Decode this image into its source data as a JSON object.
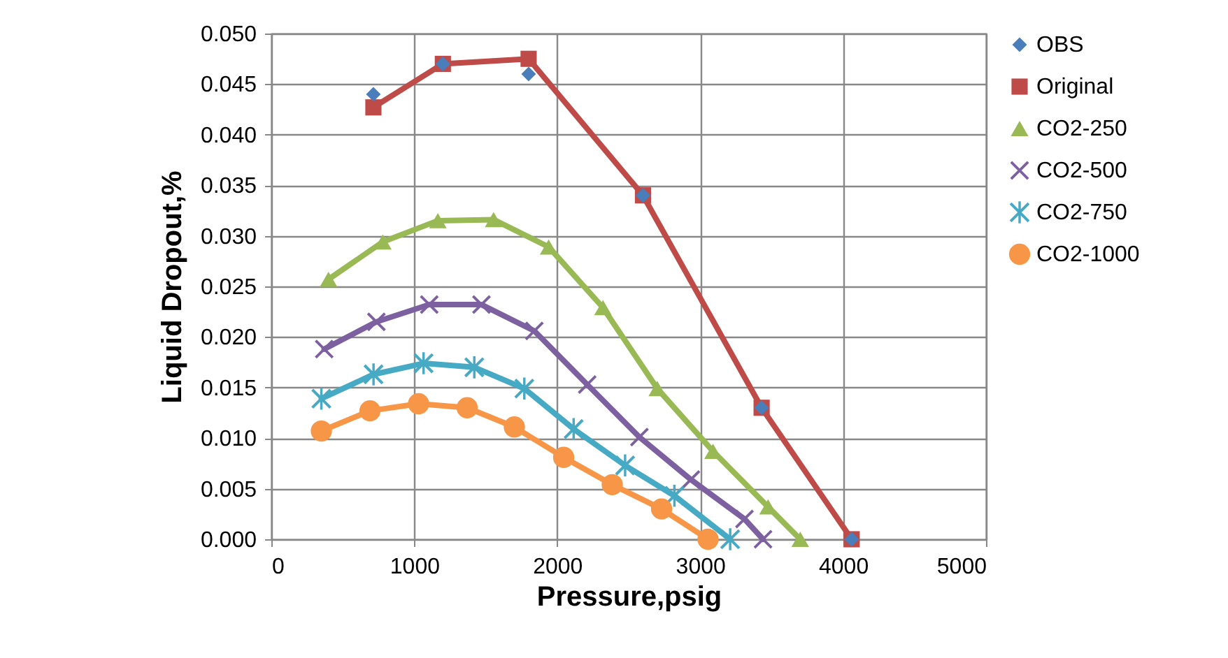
{
  "chart_data": {
    "type": "line",
    "xlabel": "Pressure,psig",
    "ylabel": "Liquid Dropout,%",
    "xlim": [
      0,
      5000
    ],
    "xticks": [
      0,
      1000,
      2000,
      3000,
      4000,
      5000
    ],
    "ylim": [
      0,
      0.05
    ],
    "yticks": [
      {
        "value": 0,
        "label": "0.000"
      },
      {
        "value": 0.005,
        "label": "0.005"
      },
      {
        "value": 0.01,
        "label": "0.010"
      },
      {
        "value": 0.015,
        "label": "0.015"
      },
      {
        "value": 0.02,
        "label": "0.020"
      },
      {
        "value": 0.025,
        "label": "0.025"
      },
      {
        "value": 0.03,
        "label": "0.030"
      },
      {
        "value": 0.035,
        "label": "0.035"
      },
      {
        "value": 0.04,
        "label": "0.040"
      },
      {
        "value": 0.045,
        "label": "0.045"
      },
      {
        "value": 0.05,
        "label": "0.050"
      }
    ],
    "grid": true,
    "legend": "right",
    "series": [
      {
        "name": "OBS",
        "type": "scatter",
        "marker": "diamond",
        "color": "#4a7ebb",
        "x": [
          714,
          1200,
          1800,
          2600,
          3430,
          4060
        ],
        "values": [
          0.044,
          0.047,
          0.046,
          0.034,
          0.013,
          0
        ]
      },
      {
        "name": "Original",
        "type": "line",
        "marker": "square",
        "color": "#be4b48",
        "x": [
          714,
          1200,
          1800,
          2600,
          3430,
          4060
        ],
        "values": [
          0.0427,
          0.047,
          0.0475,
          0.034,
          0.013,
          0
        ]
      },
      {
        "name": "CO2-250",
        "type": "line",
        "marker": "triangle",
        "color": "#98b954",
        "x": [
          400,
          780,
          1165,
          1555,
          1940,
          2320,
          2700,
          3090,
          3475,
          3700
        ],
        "values": [
          0.0257,
          0.0294,
          0.0315,
          0.0316,
          0.0289,
          0.0229,
          0.0149,
          0.0087,
          0.0032,
          0
        ]
      },
      {
        "name": "CO2-500",
        "type": "line",
        "marker": "cross",
        "color": "#7d60a0",
        "x": [
          370,
          735,
          1105,
          1470,
          1840,
          2210,
          2575,
          2935,
          3310,
          3440
        ],
        "values": [
          0.0188,
          0.0215,
          0.0232,
          0.0232,
          0.0206,
          0.0153,
          0.0101,
          0.0059,
          0.002,
          0
        ]
      },
      {
        "name": "CO2-750",
        "type": "line",
        "marker": "star",
        "color": "#46aac5",
        "x": [
          350,
          715,
          1065,
          1420,
          1770,
          2115,
          2475,
          2820,
          3210
        ],
        "values": [
          0.0139,
          0.0163,
          0.0174,
          0.017,
          0.0149,
          0.0109,
          0.0073,
          0.0043,
          0
        ]
      },
      {
        "name": "CO2-1000",
        "type": "line",
        "marker": "circle",
        "color": "#f79646",
        "x": [
          350,
          690,
          1030,
          1370,
          1700,
          2045,
          2385,
          2730,
          3055
        ],
        "values": [
          0.0107,
          0.0127,
          0.0134,
          0.013,
          0.0111,
          0.0081,
          0.0054,
          0.003,
          0
        ]
      }
    ]
  }
}
